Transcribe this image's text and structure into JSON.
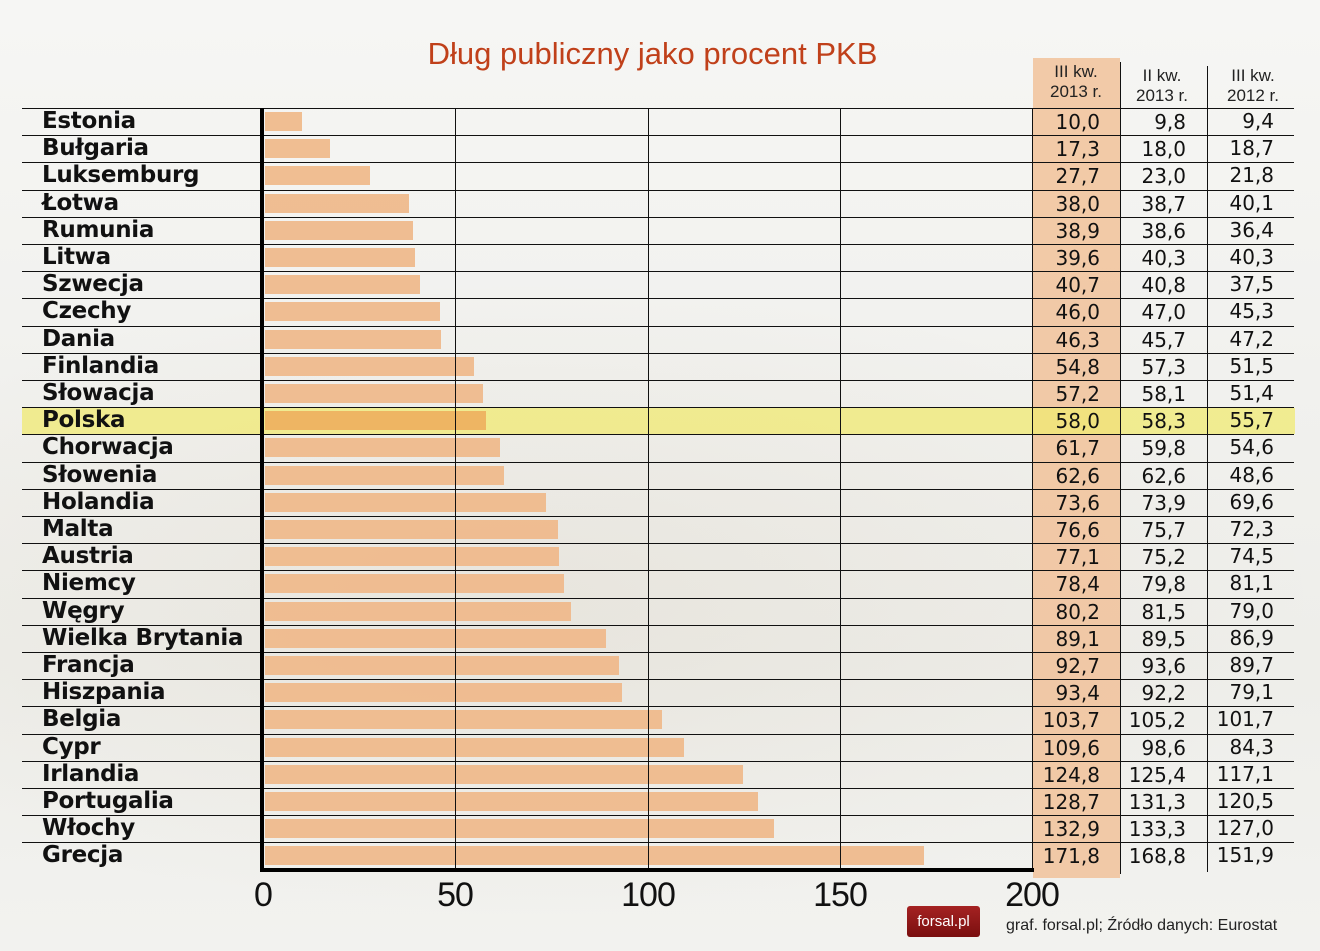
{
  "title": "Dług publiczny jako procent PKB",
  "table": {
    "headers": [
      {
        "line1": "III kw.",
        "line2": "2013 r."
      },
      {
        "line1": "II kw.",
        "line2": "2013 r."
      },
      {
        "line1": "III kw.",
        "line2": "2012 r."
      }
    ]
  },
  "rows": [
    {
      "country": "Estonia",
      "q3_2013": "10,0",
      "q2_2013": "9,8",
      "q3_2012": "9,4"
    },
    {
      "country": "Bułgaria",
      "q3_2013": "17,3",
      "q2_2013": "18,0",
      "q3_2012": "18,7"
    },
    {
      "country": "Luksemburg",
      "q3_2013": "27,7",
      "q2_2013": "23,0",
      "q3_2012": "21,8"
    },
    {
      "country": "Łotwa",
      "q3_2013": "38,0",
      "q2_2013": "38,7",
      "q3_2012": "40,1"
    },
    {
      "country": "Rumunia",
      "q3_2013": "38,9",
      "q2_2013": "38,6",
      "q3_2012": "36,4"
    },
    {
      "country": "Litwa",
      "q3_2013": "39,6",
      "q2_2013": "40,3",
      "q3_2012": "40,3"
    },
    {
      "country": "Szwecja",
      "q3_2013": "40,7",
      "q2_2013": "40,8",
      "q3_2012": "37,5"
    },
    {
      "country": "Czechy",
      "q3_2013": "46,0",
      "q2_2013": "47,0",
      "q3_2012": "45,3"
    },
    {
      "country": "Dania",
      "q3_2013": "46,3",
      "q2_2013": "45,7",
      "q3_2012": "47,2"
    },
    {
      "country": "Finlandia",
      "q3_2013": "54,8",
      "q2_2013": "57,3",
      "q3_2012": "51,5"
    },
    {
      "country": "Słowacja",
      "q3_2013": "57,2",
      "q2_2013": "58,1",
      "q3_2012": "51,4"
    },
    {
      "country": "Polska",
      "q3_2013": "58,0",
      "q2_2013": "58,3",
      "q3_2012": "55,7",
      "highlight": true
    },
    {
      "country": "Chorwacja",
      "q3_2013": "61,7",
      "q2_2013": "59,8",
      "q3_2012": "54,6"
    },
    {
      "country": "Słowenia",
      "q3_2013": "62,6",
      "q2_2013": "62,6",
      "q3_2012": "48,6"
    },
    {
      "country": "Holandia",
      "q3_2013": "73,6",
      "q2_2013": "73,9",
      "q3_2012": "69,6"
    },
    {
      "country": "Malta",
      "q3_2013": "76,6",
      "q2_2013": "75,7",
      "q3_2012": "72,3"
    },
    {
      "country": "Austria",
      "q3_2013": "77,1",
      "q2_2013": "75,2",
      "q3_2012": "74,5"
    },
    {
      "country": "Niemcy",
      "q3_2013": "78,4",
      "q2_2013": "79,8",
      "q3_2012": "81,1"
    },
    {
      "country": "Węgry",
      "q3_2013": "80,2",
      "q2_2013": "81,5",
      "q3_2012": "79,0"
    },
    {
      "country": "Wielka Brytania",
      "q3_2013": "89,1",
      "q2_2013": "89,5",
      "q3_2012": "86,9"
    },
    {
      "country": "Francja",
      "q3_2013": "92,7",
      "q2_2013": "93,6",
      "q3_2012": "89,7"
    },
    {
      "country": "Hiszpania",
      "q3_2013": "93,4",
      "q2_2013": "92,2",
      "q3_2012": "79,1"
    },
    {
      "country": "Belgia",
      "q3_2013": "103,7",
      "q2_2013": "105,2",
      "q3_2012": "101,7"
    },
    {
      "country": "Cypr",
      "q3_2013": "109,6",
      "q2_2013": "98,6",
      "q3_2012": "84,3"
    },
    {
      "country": "Irlandia",
      "q3_2013": "124,8",
      "q2_2013": "125,4",
      "q3_2012": "117,1"
    },
    {
      "country": "Portugalia",
      "q3_2013": "128,7",
      "q2_2013": "131,3",
      "q3_2012": "120,5"
    },
    {
      "country": "Włochy",
      "q3_2013": "132,9",
      "q2_2013": "133,3",
      "q3_2012": "127,0"
    },
    {
      "country": "Grecja",
      "q3_2013": "171,8",
      "q2_2013": "168,8",
      "q3_2012": "151,9"
    }
  ],
  "axis": {
    "ticks": [
      "0",
      "50",
      "100",
      "150",
      "200"
    ]
  },
  "footer": {
    "logo": "forsal.pl",
    "source": "graf. forsal.pl; Źródło danych: Eurostat"
  },
  "colors": {
    "bar": "#efb98a",
    "highlight": "#f0ea72",
    "title": "#c0401a",
    "logo_bg": "#8e1818"
  },
  "chart_data": {
    "type": "bar",
    "orientation": "horizontal",
    "title": "Dług publiczny jako procent PKB",
    "xlabel": "",
    "ylabel": "",
    "xlim": [
      0,
      200
    ],
    "xticks": [
      0,
      50,
      100,
      150,
      200
    ],
    "grid": true,
    "highlighted_category": "Polska",
    "categories": [
      "Estonia",
      "Bułgaria",
      "Luksemburg",
      "Łotwa",
      "Rumunia",
      "Litwa",
      "Szwecja",
      "Czechy",
      "Dania",
      "Finlandia",
      "Słowacja",
      "Polska",
      "Chorwacja",
      "Słowenia",
      "Holandia",
      "Malta",
      "Austria",
      "Niemcy",
      "Węgry",
      "Wielka Brytania",
      "Francja",
      "Hiszpania",
      "Belgia",
      "Cypr",
      "Irlandia",
      "Portugalia",
      "Włochy",
      "Grecja"
    ],
    "series": [
      {
        "name": "III kw. 2013 r.",
        "plotted": true,
        "values": [
          10.0,
          17.3,
          27.7,
          38.0,
          38.9,
          39.6,
          40.7,
          46.0,
          46.3,
          54.8,
          57.2,
          58.0,
          61.7,
          62.6,
          73.6,
          76.6,
          77.1,
          78.4,
          80.2,
          89.1,
          92.7,
          93.4,
          103.7,
          109.6,
          124.8,
          128.7,
          132.9,
          171.8
        ]
      },
      {
        "name": "II kw. 2013 r.",
        "plotted": false,
        "values": [
          9.8,
          18.0,
          23.0,
          38.7,
          38.6,
          40.3,
          40.8,
          47.0,
          45.7,
          57.3,
          58.1,
          58.3,
          59.8,
          62.6,
          73.9,
          75.7,
          75.2,
          79.8,
          81.5,
          89.5,
          93.6,
          92.2,
          105.2,
          98.6,
          125.4,
          131.3,
          133.3,
          168.8
        ]
      },
      {
        "name": "III kw. 2012 r.",
        "plotted": false,
        "values": [
          9.4,
          18.7,
          21.8,
          40.1,
          36.4,
          40.3,
          37.5,
          45.3,
          47.2,
          51.5,
          51.4,
          55.7,
          54.6,
          48.6,
          69.6,
          72.3,
          74.5,
          81.1,
          79.0,
          86.9,
          89.7,
          79.1,
          101.7,
          84.3,
          117.1,
          120.5,
          127.0,
          151.9
        ]
      }
    ],
    "source": "graf. forsal.pl; Źródło danych: Eurostat"
  }
}
